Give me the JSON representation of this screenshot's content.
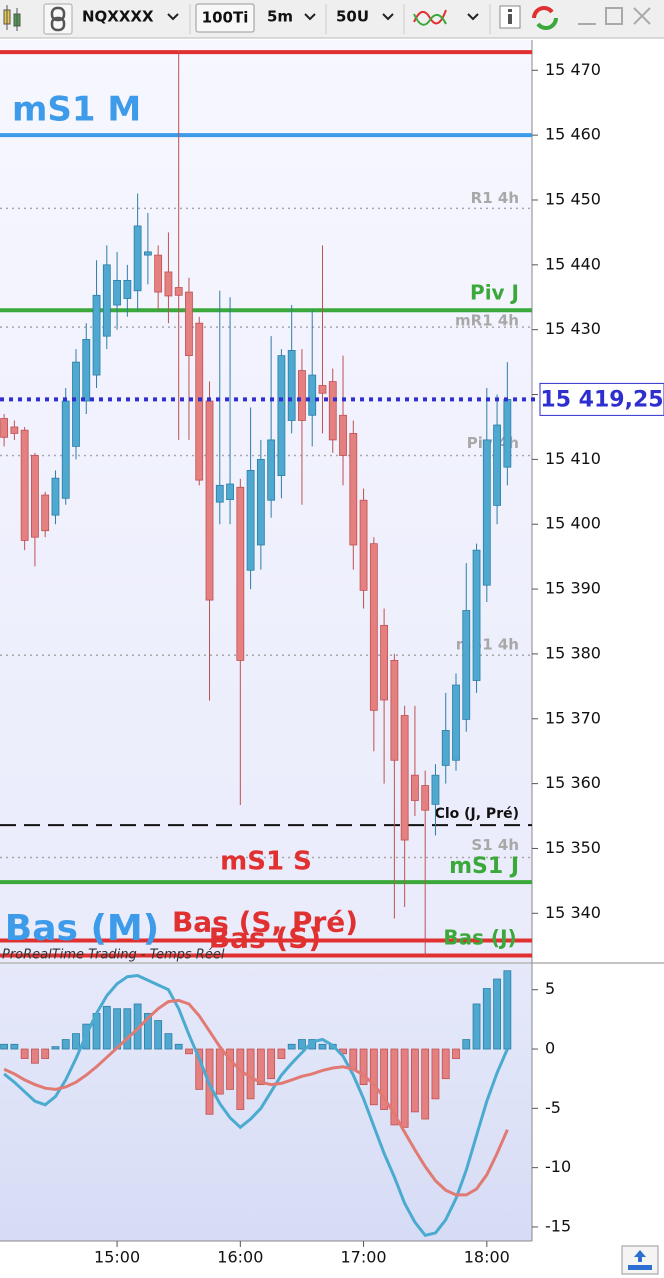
{
  "toolbar": {
    "symbol": "NQXXXX",
    "units": "100Ti",
    "timeframe": "5m",
    "count": "50U"
  },
  "chart_data": [
    {
      "type": "candlestick",
      "x": [
        845,
        850,
        855,
        860,
        865,
        870,
        875,
        880,
        885,
        890,
        895,
        900,
        905,
        910,
        915,
        920,
        925,
        930,
        935,
        940,
        945,
        950,
        955,
        960,
        965,
        970,
        975,
        980,
        985,
        990,
        995,
        1000,
        1005,
        1010,
        1015,
        1020,
        1025,
        1030,
        1035,
        1040,
        1045,
        1050,
        1055,
        1060,
        1065,
        1070,
        1075,
        1080,
        1085,
        1090
      ],
      "open": [
        15416.3,
        15415,
        15414.5,
        15410.6,
        15404.5,
        15401.4,
        15404,
        15412,
        15419,
        15423,
        15429,
        15433.8,
        15434.8,
        15436,
        15441.5,
        15441.5,
        15438.9,
        15436.5,
        15435.8,
        15431,
        15419,
        15403.4,
        15403.8,
        15405.7,
        15392.9,
        15396.8,
        15403.7,
        15407.5,
        15416,
        15423.7,
        15416.8,
        15421.4,
        15422,
        15416.8,
        15414,
        15403.7,
        15397,
        15384.4,
        15379,
        15370.5,
        15361.3,
        15359.7,
        15356.8,
        15362.8,
        15363.6,
        15369.9,
        15375.9,
        15390.6,
        15402.9,
        15408.8
      ],
      "high": [
        15417,
        15416,
        15415,
        15411,
        15405,
        15408.3,
        15421,
        15427,
        15431,
        15440.7,
        15443,
        15442,
        15440,
        15451,
        15448,
        15443,
        15445,
        15473,
        15438,
        15432,
        15422,
        15436,
        15435,
        15407,
        15418,
        15413,
        15429,
        15427,
        15433.8,
        15427,
        15433,
        15443,
        15424,
        15426,
        15416,
        15405.5,
        15398,
        15387,
        15380,
        15372,
        15372,
        15362,
        15363,
        15374,
        15377,
        15394,
        15397,
        15421,
        15420,
        15425
      ],
      "low": [
        15412,
        15413,
        15396,
        15393.5,
        15398,
        15400,
        15403,
        15410,
        15417,
        15421,
        15427,
        15430,
        15432,
        15433,
        15437,
        15433,
        15431,
        15413,
        15413,
        15406,
        15372.8,
        15400,
        15400,
        15356.7,
        15390,
        15393,
        15401,
        15404,
        15414,
        15403,
        15412,
        15414,
        15411,
        15406,
        15393,
        15387,
        15365,
        15360,
        15339.2,
        15341,
        15355,
        15333.5,
        15352,
        15360,
        15362,
        15368,
        15374,
        15388,
        15400,
        15406
      ],
      "close": [
        15413.4,
        15414,
        15397.5,
        15398,
        15399,
        15407.1,
        15419,
        15425,
        15428.5,
        15435.3,
        15440,
        15437.6,
        15437.6,
        15446,
        15442,
        15435.8,
        15435.2,
        15435.3,
        15426,
        15406.8,
        15388.3,
        15406,
        15406.2,
        15379,
        15408.3,
        15410,
        15413,
        15426,
        15426.8,
        15416,
        15423,
        15420.2,
        15413,
        15410.6,
        15396.8,
        15389.8,
        15371.3,
        15372.9,
        15363.6,
        15351.3,
        15357.4,
        15355.9,
        15361.3,
        15368.2,
        15375.2,
        15386.7,
        15396,
        15413,
        15415.3,
        15419.25
      ],
      "up_color": "#4fa8cf",
      "down_color": "#e58080",
      "xlim": [
        843,
        1102
      ],
      "ylim": [
        15332.8,
        15473.9
      ],
      "yticks": [
        {
          "value": 15470,
          "label": "15 470"
        },
        {
          "value": 15460,
          "label": "15 460"
        },
        {
          "value": 15450,
          "label": "15 450"
        },
        {
          "value": 15440,
          "label": "15 440"
        },
        {
          "value": 15430,
          "label": "15 430"
        },
        {
          "value": 15420,
          "label": "15 420"
        },
        {
          "value": 15410,
          "label": "15 410"
        },
        {
          "value": 15400,
          "label": "15 400"
        },
        {
          "value": 15390,
          "label": "15 390"
        },
        {
          "value": 15380,
          "label": "15 380"
        },
        {
          "value": 15370,
          "label": "15 370"
        },
        {
          "value": 15360,
          "label": "15 360"
        },
        {
          "value": 15350,
          "label": "15 350"
        },
        {
          "value": 15340,
          "label": "15 340"
        }
      ],
      "last": {
        "value": 15419.25,
        "label": "15 419,25",
        "color": "#2f2fd0"
      },
      "levels": [
        {
          "value": 15472.8,
          "color": "#e03030",
          "style": "solid"
        },
        {
          "value": 15460,
          "label": "mS1 M",
          "color": "#3d9be9",
          "style": "solid"
        },
        {
          "value": 15448.7,
          "label": "R1 4h",
          "color": "#a8a8a8",
          "style": "dotted"
        },
        {
          "value": 15433,
          "label": "Piv J",
          "color": "#3aa83a",
          "style": "solid"
        },
        {
          "value": 15430.4,
          "label": "mR1 4h",
          "color": "#a8a8a8",
          "style": "dotted"
        },
        {
          "value": 15410.6,
          "label": "Piv 4h",
          "color": "#a8a8a8",
          "style": "dotted"
        },
        {
          "value": 15379.8,
          "label": "mS1 4h",
          "color": "#a8a8a8",
          "style": "dotted"
        },
        {
          "value": 15353.6,
          "label": "Clo (J, Pré)",
          "color": "#111111",
          "style": "dashed"
        },
        {
          "value": 15348.6,
          "label": "S1 4h",
          "color": "#a8a8a8",
          "style": "dotted"
        },
        {
          "value": 15344.8,
          "label": "mS1 J",
          "color": "#3aa83a",
          "style": "solid"
        },
        {
          "value": 15335.8,
          "label": "Bas (S, Pré)",
          "color": "#e03030",
          "style": "solid"
        },
        {
          "value": 15333.5,
          "label": "Bas (S)",
          "color": "#e03030",
          "style": "solid"
        }
      ],
      "annotations": [
        {
          "text": "mS1 S",
          "color": "#e03030"
        },
        {
          "text": "Bas (M)",
          "color": "#3d9be9"
        },
        {
          "text": "Bas (J)",
          "color": "#3aa83a"
        }
      ],
      "watermark": "ProRealTime Trading - Temps Réel"
    },
    {
      "type": "macd",
      "x": [
        845,
        850,
        855,
        860,
        865,
        870,
        875,
        880,
        885,
        890,
        895,
        900,
        905,
        910,
        915,
        920,
        925,
        930,
        935,
        940,
        945,
        950,
        955,
        960,
        965,
        970,
        975,
        980,
        985,
        990,
        995,
        1000,
        1005,
        1010,
        1015,
        1020,
        1025,
        1030,
        1035,
        1040,
        1045,
        1050,
        1055,
        1060,
        1065,
        1070,
        1075,
        1080,
        1085,
        1090
      ],
      "histogram": {
        "values": [
          0.4,
          0.4,
          -0.8,
          -1.2,
          -0.8,
          0.2,
          0.8,
          1.3,
          2.1,
          3.0,
          3.6,
          3.4,
          3.4,
          3.8,
          3.0,
          2.4,
          1.3,
          0.4,
          -0.4,
          -3.4,
          -5.5,
          -3.8,
          -3.4,
          -5.1,
          -4.2,
          -3.0,
          -2.5,
          -0.8,
          0.4,
          0.8,
          0.8,
          0.4,
          0.4,
          -0.4,
          -1.7,
          -3.0,
          -4.7,
          -5.1,
          -6.4,
          -6.6,
          -5.3,
          -5.9,
          -4.2,
          -2.5,
          -0.8,
          0.8,
          3.8,
          5.1,
          5.9,
          6.6
        ],
        "up_color": "#4fa8cf",
        "down_color": "#e58080"
      },
      "series": [
        {
          "color": "#4aaad0",
          "values": [
            -2.1,
            -2.8,
            -3.6,
            -4.4,
            -4.7,
            -4.0,
            -2.6,
            -0.8,
            1.2,
            3.0,
            4.5,
            5.5,
            6.1,
            6.2,
            5.8,
            5.4,
            5.0,
            3.4,
            1.2,
            -0.8,
            -3.0,
            -4.6,
            -5.8,
            -6.6,
            -5.9,
            -5.0,
            -3.6,
            -2.2,
            -1.2,
            -0.3,
            0.6,
            0.8,
            0.3,
            -0.6,
            -2.2,
            -4.2,
            -6.5,
            -8.8,
            -10.8,
            -13.0,
            -14.6,
            -15.7,
            -15.5,
            -14.4,
            -12.6,
            -10.2,
            -7.3,
            -4.4,
            -2.0,
            0.0
          ]
        },
        {
          "color": "#e07a72",
          "values": [
            -1.7,
            -2.1,
            -2.6,
            -3.0,
            -3.3,
            -3.4,
            -3.2,
            -2.8,
            -2.2,
            -1.5,
            -0.7,
            0.1,
            0.9,
            1.7,
            2.6,
            3.4,
            4.0,
            4.1,
            3.8,
            2.8,
            1.5,
            0.2,
            -0.9,
            -1.8,
            -2.4,
            -2.8,
            -3.0,
            -2.9,
            -2.6,
            -2.3,
            -2.1,
            -1.8,
            -1.6,
            -1.5,
            -1.7,
            -2.2,
            -3.0,
            -4.1,
            -5.5,
            -7.0,
            -8.5,
            -9.9,
            -11.1,
            -11.9,
            -12.3,
            -12.3,
            -11.8,
            -10.6,
            -8.8,
            -6.8
          ]
        }
      ],
      "xlim": [
        843,
        1102
      ],
      "ylim": [
        -16.1,
        7.0
      ],
      "yticks": [
        5,
        0,
        -5,
        -10,
        -15
      ],
      "xticks": [
        {
          "value": 900,
          "label": "15:00"
        },
        {
          "value": 960,
          "label": "16:00"
        },
        {
          "value": 1020,
          "label": "17:00"
        },
        {
          "value": 1080,
          "label": "18:00"
        }
      ]
    }
  ]
}
